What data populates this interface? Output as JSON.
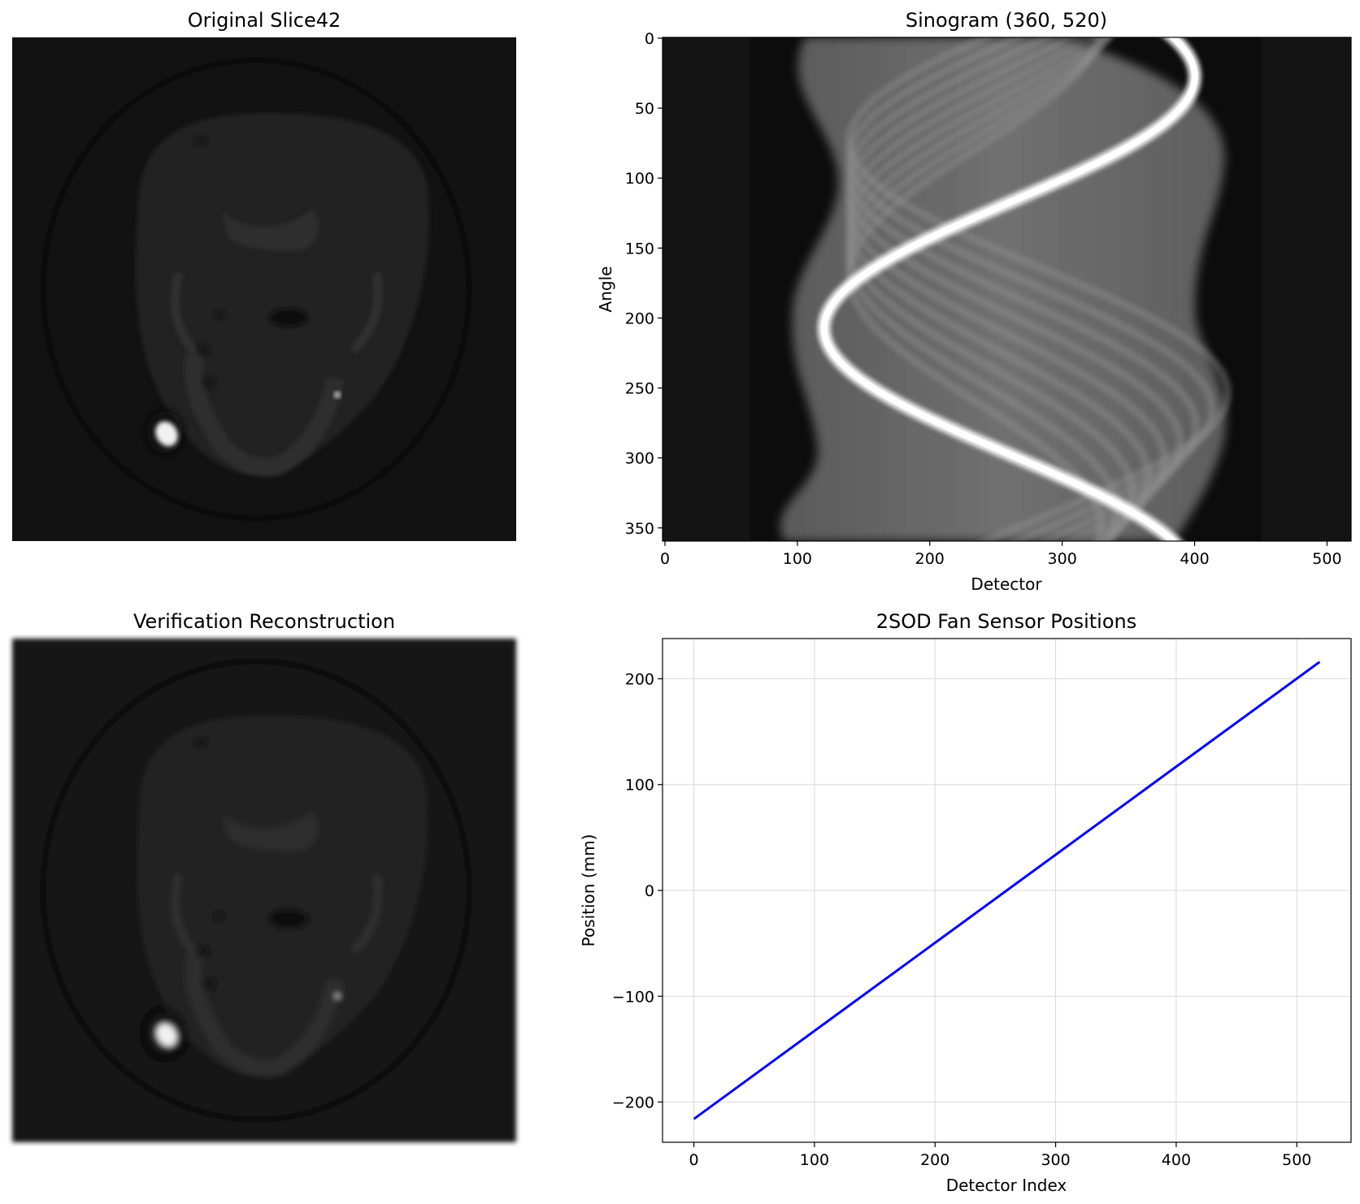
{
  "panels": {
    "original": {
      "title": "Original Slice42"
    },
    "sinogram": {
      "title": "Sinogram (360, 520)"
    },
    "reconstruction": {
      "title": "Verification Reconstruction"
    },
    "sensor": {
      "title": "2SOD Fan Sensor Positions"
    }
  },
  "chart_data": [
    {
      "type": "image",
      "title": "Original Slice42",
      "colormap": "gray",
      "axes": "off"
    },
    {
      "type": "heatmap",
      "title": "Sinogram (360, 520)",
      "colormap": "gray",
      "shape": [
        360,
        520
      ],
      "xlabel": "Detector",
      "ylabel": "Angle",
      "xlim": [
        0,
        520
      ],
      "ylim": [
        360,
        0
      ],
      "xticks": [
        0,
        100,
        200,
        300,
        400,
        500
      ],
      "yticks": [
        0,
        50,
        100,
        150,
        200,
        250,
        300,
        350
      ],
      "xtick_labels": [
        "0",
        "100",
        "200",
        "300",
        "400",
        "500"
      ],
      "ytick_labels": [
        "0",
        "50",
        "100",
        "150",
        "200",
        "250",
        "300",
        "350"
      ]
    },
    {
      "type": "image",
      "title": "Verification Reconstruction",
      "colormap": "gray",
      "axes": "off"
    },
    {
      "type": "line",
      "title": "2SOD Fan Sensor Positions",
      "xlabel": "Detector Index",
      "ylabel": "Position (mm)",
      "xlim": [
        -26,
        545
      ],
      "ylim": [
        -238,
        238
      ],
      "xticks": [
        0,
        100,
        200,
        300,
        400,
        500
      ],
      "yticks": [
        -200,
        -100,
        0,
        100,
        200
      ],
      "xtick_labels": [
        "0",
        "100",
        "200",
        "300",
        "400",
        "500"
      ],
      "ytick_labels": [
        "−200",
        "−100",
        "0",
        "100",
        "200"
      ],
      "grid": true,
      "series": [
        {
          "x": [
            0,
            519
          ],
          "y": [
            -216,
            216
          ],
          "color": "#0000ff"
        }
      ]
    }
  ]
}
